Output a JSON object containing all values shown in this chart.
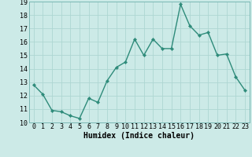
{
  "x": [
    0,
    1,
    2,
    3,
    4,
    5,
    6,
    7,
    8,
    9,
    10,
    11,
    12,
    13,
    14,
    15,
    16,
    17,
    18,
    19,
    20,
    21,
    22,
    23
  ],
  "y": [
    12.8,
    12.1,
    10.9,
    10.8,
    10.5,
    10.3,
    11.8,
    11.5,
    13.1,
    14.1,
    14.5,
    16.2,
    15.0,
    16.2,
    15.5,
    15.5,
    18.8,
    17.2,
    16.5,
    16.7,
    15.0,
    15.1,
    13.4,
    12.4
  ],
  "line_color": "#2e8b7a",
  "marker": "D",
  "marker_size": 2.2,
  "bg_color": "#cceae7",
  "grid_color": "#aed6d2",
  "xlabel": "Humidex (Indice chaleur)",
  "xlim": [
    -0.5,
    23.5
  ],
  "ylim": [
    10,
    19
  ],
  "yticks": [
    10,
    11,
    12,
    13,
    14,
    15,
    16,
    17,
    18,
    19
  ],
  "xticks": [
    0,
    1,
    2,
    3,
    4,
    5,
    6,
    7,
    8,
    9,
    10,
    11,
    12,
    13,
    14,
    15,
    16,
    17,
    18,
    19,
    20,
    21,
    22,
    23
  ],
  "xlabel_fontsize": 7,
  "tick_fontsize": 6,
  "line_width": 1.0
}
